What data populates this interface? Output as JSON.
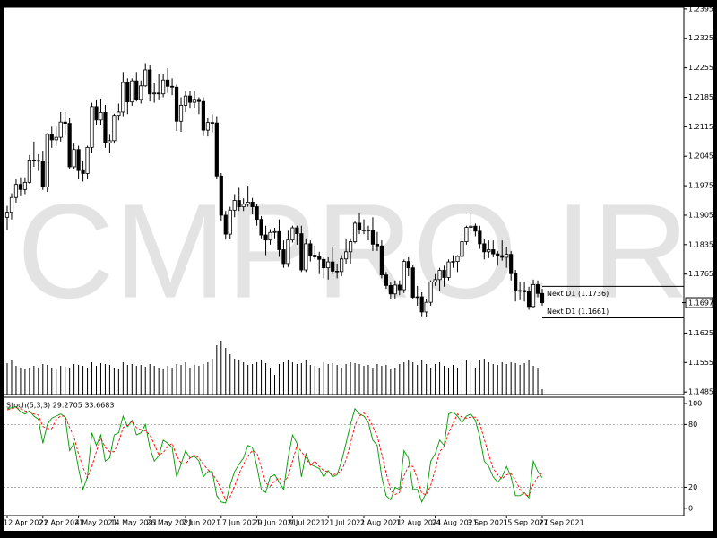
{
  "chart_data": {
    "type": "candlestick",
    "watermark": "CMPRO.IR",
    "categories": [
      "12 Apr 2021",
      null,
      null,
      null,
      null,
      null,
      null,
      null,
      "22 Apr 2021",
      null,
      null,
      null,
      null,
      null,
      null,
      null,
      "4 May 2021",
      null,
      null,
      null,
      null,
      null,
      null,
      null,
      "14 May 2021",
      null,
      null,
      null,
      null,
      null,
      null,
      null,
      "26 May 2021",
      null,
      null,
      null,
      null,
      null,
      null,
      null,
      "7 Jun 2021",
      null,
      null,
      null,
      null,
      null,
      null,
      null,
      "17 Jun 2021",
      null,
      null,
      null,
      null,
      null,
      null,
      null,
      "29 Jun 2021",
      null,
      null,
      null,
      null,
      null,
      null,
      null,
      "9 Jul 2021",
      null,
      null,
      null,
      null,
      null,
      null,
      null,
      "21 Jul 2021",
      null,
      null,
      null,
      null,
      null,
      null,
      null,
      "2 Aug 2021",
      null,
      null,
      null,
      null,
      null,
      null,
      null,
      "12 Aug 2021",
      null,
      null,
      null,
      null,
      null,
      null,
      null,
      "24 Aug 2021",
      null,
      null,
      null,
      null,
      null,
      null,
      null,
      "3 Sep 2021",
      null,
      null,
      null,
      null,
      null,
      null,
      null,
      "15 Sep 2021",
      null,
      null,
      null,
      null,
      null,
      null,
      null,
      "27 Sep 2021"
    ],
    "ohlc": [
      [
        1.19,
        1.1927,
        1.187,
        1.1912
      ],
      [
        1.1912,
        1.1957,
        1.1895,
        1.1947
      ],
      [
        1.1947,
        1.199,
        1.1935,
        1.1978
      ],
      [
        1.1978,
        1.1995,
        1.195,
        1.1966
      ],
      [
        1.1966,
        1.1995,
        1.1955,
        1.1983
      ],
      [
        1.1983,
        1.2048,
        1.198,
        1.2036
      ],
      [
        1.2036,
        1.208,
        1.202,
        1.2035
      ],
      [
        1.2035,
        1.205,
        1.201,
        1.2034
      ],
      [
        1.2034,
        1.2058,
        1.1965,
        1.1972
      ],
      [
        1.1972,
        1.21,
        1.196,
        1.2097
      ],
      [
        1.2097,
        1.2115,
        1.2065,
        1.2084
      ],
      [
        1.2084,
        1.2115,
        1.207,
        1.209
      ],
      [
        1.209,
        1.215,
        1.208,
        1.2126
      ],
      [
        1.2126,
        1.215,
        1.2095,
        1.2123
      ],
      [
        1.2123,
        1.2135,
        1.2015,
        1.202
      ],
      [
        1.202,
        1.2075,
        1.2015,
        1.2061
      ],
      [
        1.2061,
        1.207,
        1.199,
        1.2011
      ],
      [
        1.2011,
        1.2033,
        1.1985,
        1.2004
      ],
      [
        1.2004,
        1.207,
        1.199,
        1.2066
      ],
      [
        1.2066,
        1.2172,
        1.2052,
        1.2163
      ],
      [
        1.2163,
        1.218,
        1.212,
        1.2131
      ],
      [
        1.2131,
        1.2182,
        1.212,
        1.2149
      ],
      [
        1.2149,
        1.2167,
        1.2065,
        1.2077
      ],
      [
        1.2077,
        1.2096,
        1.2052,
        1.2082
      ],
      [
        1.2082,
        1.2146,
        1.2075,
        1.2142
      ],
      [
        1.2142,
        1.217,
        1.213,
        1.215
      ],
      [
        1.215,
        1.2245,
        1.214,
        1.222
      ],
      [
        1.222,
        1.223,
        1.2145,
        1.2174
      ],
      [
        1.2174,
        1.223,
        1.2165,
        1.2224
      ],
      [
        1.2224,
        1.2245,
        1.2175,
        1.218
      ],
      [
        1.218,
        1.2225,
        1.217,
        1.2212
      ],
      [
        1.2212,
        1.2266,
        1.221,
        1.225
      ],
      [
        1.225,
        1.2262,
        1.2175,
        1.2193
      ],
      [
        1.2193,
        1.2218,
        1.2172,
        1.2195
      ],
      [
        1.2195,
        1.224,
        1.218,
        1.2193
      ],
      [
        1.2193,
        1.224,
        1.2185,
        1.2226
      ],
      [
        1.2226,
        1.2254,
        1.2195,
        1.2211
      ],
      [
        1.2211,
        1.223,
        1.219,
        1.2209
      ],
      [
        1.2209,
        1.2215,
        1.2105,
        1.2128
      ],
      [
        1.2128,
        1.2185,
        1.2103,
        1.2166
      ],
      [
        1.2166,
        1.22,
        1.215,
        1.2188
      ],
      [
        1.2188,
        1.22,
        1.2158,
        1.2173
      ],
      [
        1.2173,
        1.22,
        1.216,
        1.218
      ],
      [
        1.218,
        1.2185,
        1.2145,
        1.2175
      ],
      [
        1.2175,
        1.2185,
        1.2093,
        1.2107
      ],
      [
        1.2107,
        1.2135,
        1.2092,
        1.2125
      ],
      [
        1.2125,
        1.2145,
        1.2102,
        1.2124
      ],
      [
        1.2124,
        1.214,
        1.199,
        1.1998
      ],
      [
        1.1998,
        1.2005,
        1.1892,
        1.1905
      ],
      [
        1.1905,
        1.1915,
        1.1847,
        1.186
      ],
      [
        1.186,
        1.1925,
        1.1848,
        1.1917
      ],
      [
        1.1917,
        1.1955,
        1.19,
        1.194
      ],
      [
        1.194,
        1.197,
        1.1915,
        1.1925
      ],
      [
        1.1925,
        1.1945,
        1.1915,
        1.1931
      ],
      [
        1.1931,
        1.1975,
        1.1925,
        1.1936
      ],
      [
        1.1936,
        1.1946,
        1.1907,
        1.1925
      ],
      [
        1.1925,
        1.1932,
        1.188,
        1.1895
      ],
      [
        1.1895,
        1.1903,
        1.185,
        1.1858
      ],
      [
        1.1858,
        1.188,
        1.181,
        1.1846
      ],
      [
        1.1846,
        1.1872,
        1.1835,
        1.1864
      ],
      [
        1.1864,
        1.1875,
        1.185,
        1.1866
      ],
      [
        1.1866,
        1.1895,
        1.1806,
        1.1823
      ],
      [
        1.1823,
        1.1845,
        1.178,
        1.179
      ],
      [
        1.179,
        1.1868,
        1.1782,
        1.1846
      ],
      [
        1.1846,
        1.188,
        1.184,
        1.1875
      ],
      [
        1.1875,
        1.188,
        1.1835,
        1.1861
      ],
      [
        1.1861,
        1.188,
        1.177,
        1.1775
      ],
      [
        1.1775,
        1.185,
        1.177,
        1.1837
      ],
      [
        1.1837,
        1.1845,
        1.1795,
        1.181
      ],
      [
        1.181,
        1.1833,
        1.18,
        1.1806
      ],
      [
        1.1806,
        1.1818,
        1.1765,
        1.18
      ],
      [
        1.18,
        1.1805,
        1.1755,
        1.178
      ],
      [
        1.178,
        1.1805,
        1.1752,
        1.1794
      ],
      [
        1.1794,
        1.183,
        1.1765,
        1.1772
      ],
      [
        1.1772,
        1.179,
        1.1755,
        1.1771
      ],
      [
        1.1771,
        1.181,
        1.176,
        1.1801
      ],
      [
        1.1801,
        1.185,
        1.179,
        1.1818
      ],
      [
        1.1818,
        1.185,
        1.179,
        1.1842
      ],
      [
        1.1842,
        1.1892,
        1.1838,
        1.1886
      ],
      [
        1.1886,
        1.1909,
        1.186,
        1.187
      ],
      [
        1.187,
        1.1895,
        1.186,
        1.1868
      ],
      [
        1.1868,
        1.188,
        1.1845,
        1.187
      ],
      [
        1.187,
        1.19,
        1.182,
        1.1836
      ],
      [
        1.1836,
        1.1865,
        1.182,
        1.1832
      ],
      [
        1.1832,
        1.1845,
        1.1755,
        1.1763
      ],
      [
        1.1763,
        1.177,
        1.173,
        1.1738
      ],
      [
        1.1738,
        1.1745,
        1.1705,
        1.1718
      ],
      [
        1.1718,
        1.175,
        1.1705,
        1.1739
      ],
      [
        1.1739,
        1.175,
        1.1715,
        1.1728
      ],
      [
        1.1728,
        1.18,
        1.172,
        1.1795
      ],
      [
        1.1795,
        1.1805,
        1.176,
        1.178
      ],
      [
        1.178,
        1.1788,
        1.1705,
        1.171
      ],
      [
        1.171,
        1.1737,
        1.169,
        1.1711
      ],
      [
        1.1711,
        1.1722,
        1.1665,
        1.1675
      ],
      [
        1.1675,
        1.1705,
        1.1664,
        1.1698
      ],
      [
        1.1698,
        1.175,
        1.169,
        1.1746
      ],
      [
        1.1746,
        1.1765,
        1.1737,
        1.1752
      ],
      [
        1.1752,
        1.178,
        1.1725,
        1.1774
      ],
      [
        1.1774,
        1.1785,
        1.1735,
        1.1757
      ],
      [
        1.1757,
        1.18,
        1.175,
        1.1794
      ],
      [
        1.1794,
        1.181,
        1.178,
        1.1795
      ],
      [
        1.1795,
        1.181,
        1.177,
        1.1807
      ],
      [
        1.1807,
        1.1857,
        1.18,
        1.1842
      ],
      [
        1.1842,
        1.188,
        1.1835,
        1.1876
      ],
      [
        1.1876,
        1.1909,
        1.186,
        1.1879
      ],
      [
        1.1879,
        1.1885,
        1.1855,
        1.1867
      ],
      [
        1.1867,
        1.188,
        1.1825,
        1.1837
      ],
      [
        1.1837,
        1.1848,
        1.18,
        1.1818
      ],
      [
        1.1818,
        1.1845,
        1.1803,
        1.1823
      ],
      [
        1.1823,
        1.1845,
        1.1805,
        1.1813
      ],
      [
        1.1813,
        1.182,
        1.1785,
        1.1809
      ],
      [
        1.1809,
        1.1845,
        1.1797,
        1.1805
      ],
      [
        1.1805,
        1.183,
        1.178,
        1.1812
      ],
      [
        1.1812,
        1.182,
        1.175,
        1.1766
      ],
      [
        1.1766,
        1.1775,
        1.17,
        1.1725
      ],
      [
        1.1725,
        1.1745,
        1.1703,
        1.1726
      ],
      [
        1.1726,
        1.1747,
        1.17,
        1.1723
      ],
      [
        1.1723,
        1.1735,
        1.168,
        1.1688
      ],
      [
        1.1688,
        1.1752,
        1.1685,
        1.174
      ],
      [
        1.174,
        1.175,
        1.171,
        1.1719
      ],
      [
        1.1719,
        1.173,
        1.169,
        1.1697
      ]
    ],
    "up_color": "#ffffff",
    "down_color": "#000000",
    "ylim": [
      1.1479,
      1.2399
    ],
    "yticks": [
      {
        "value": 1.2395,
        "label": "1.23950"
      },
      {
        "value": 1.2325,
        "label": "1.23250"
      },
      {
        "value": 1.2255,
        "label": "1.22550"
      },
      {
        "value": 1.2185,
        "label": "1.21850"
      },
      {
        "value": 1.2115,
        "label": "1.21150"
      },
      {
        "value": 1.2045,
        "label": "1.20450"
      },
      {
        "value": 1.1975,
        "label": "1.19750"
      },
      {
        "value": 1.1905,
        "label": "1.19050"
      },
      {
        "value": 1.1835,
        "label": "1.18350"
      },
      {
        "value": 1.1765,
        "label": "1.17650"
      },
      {
        "value": 1.1625,
        "label": "1.16250"
      },
      {
        "value": 1.1555,
        "label": "1.15550"
      },
      {
        "value": 1.1485,
        "label": "1.14850"
      }
    ],
    "current_price": 1.16972,
    "levels": [
      {
        "value": 1.1736,
        "label": "Next D1 (1.1736)"
      },
      {
        "value": 1.1661,
        "label": "Next D1 (1.1661)"
      }
    ],
    "volume": {
      "color": "#000000",
      "ylim": [
        0,
        100
      ],
      "values": [
        35,
        38,
        32,
        30,
        28,
        30,
        32,
        30,
        34,
        33,
        30,
        28,
        32,
        31,
        30,
        34,
        33,
        32,
        30,
        36,
        32,
        35,
        34,
        33,
        30,
        28,
        36,
        33,
        34,
        32,
        33,
        31,
        34,
        32,
        30,
        28,
        32,
        30,
        34,
        33,
        36,
        30,
        33,
        32,
        34,
        36,
        40,
        55,
        60,
        52,
        45,
        40,
        38,
        36,
        33,
        34,
        36,
        38,
        35,
        30,
        22,
        34,
        36,
        38,
        36,
        34,
        35,
        38,
        33,
        32,
        30,
        36,
        34,
        35,
        33,
        30,
        34,
        36,
        35,
        34,
        32,
        33,
        30,
        34,
        32,
        33,
        28,
        30,
        34,
        36,
        38,
        36,
        33,
        38,
        34,
        30,
        34,
        36,
        32,
        30,
        33,
        30,
        34,
        38,
        36,
        30,
        38,
        40,
        36,
        34,
        33,
        36,
        34,
        36,
        35,
        33,
        35,
        38,
        32,
        30,
        6
      ]
    },
    "stoch": {
      "title": "Stoch(5,3,3) 29.2705 33.6683",
      "ylim": [
        -7,
        106
      ],
      "yticks": [
        100,
        80,
        20,
        0
      ],
      "levels": [
        80,
        20
      ],
      "series": [
        {
          "color": "#009900",
          "dashed": false,
          "values": [
            95,
            96,
            97,
            92,
            90,
            93,
            88,
            85,
            62,
            80,
            86,
            88,
            90,
            87,
            55,
            62,
            38,
            18,
            30,
            72,
            60,
            70,
            45,
            48,
            70,
            72,
            88,
            78,
            84,
            70,
            72,
            80,
            58,
            45,
            50,
            65,
            62,
            58,
            30,
            42,
            55,
            48,
            50,
            45,
            30,
            35,
            35,
            12,
            6,
            5,
            22,
            35,
            42,
            48,
            60,
            58,
            40,
            18,
            15,
            30,
            32,
            25,
            18,
            48,
            70,
            62,
            30,
            52,
            42,
            40,
            38,
            30,
            36,
            30,
            32,
            45,
            62,
            80,
            95,
            90,
            88,
            82,
            65,
            60,
            30,
            12,
            8,
            20,
            18,
            55,
            48,
            18,
            18,
            6,
            15,
            45,
            52,
            65,
            60,
            90,
            92,
            88,
            82,
            88,
            90,
            84,
            68,
            45,
            40,
            30,
            25,
            30,
            40,
            30,
            12,
            12,
            15,
            10,
            45,
            35,
            29.2705
          ]
        },
        {
          "color": "#ff0000",
          "dashed": true,
          "values": [
            94,
            95,
            96,
            95,
            93,
            92,
            90,
            89,
            78,
            76,
            76,
            85,
            88,
            88,
            77,
            68,
            52,
            39,
            29,
            40,
            54,
            67,
            58,
            54,
            54,
            63,
            77,
            79,
            83,
            77,
            75,
            74,
            70,
            61,
            51,
            53,
            59,
            62,
            50,
            43,
            42,
            48,
            51,
            48,
            42,
            37,
            33,
            27,
            18,
            8,
            11,
            21,
            33,
            42,
            50,
            55,
            53,
            39,
            24,
            21,
            26,
            29,
            25,
            30,
            45,
            60,
            54,
            48,
            41,
            45,
            40,
            36,
            35,
            32,
            33,
            36,
            46,
            62,
            79,
            88,
            91,
            87,
            78,
            69,
            52,
            34,
            17,
            13,
            15,
            31,
            40,
            40,
            28,
            14,
            13,
            22,
            37,
            54,
            59,
            72,
            81,
            90,
            87,
            86,
            87,
            87,
            81,
            66,
            51,
            38,
            32,
            28,
            32,
            33,
            27,
            18,
            13,
            12,
            23,
            30,
            33.6683
          ]
        }
      ]
    }
  }
}
